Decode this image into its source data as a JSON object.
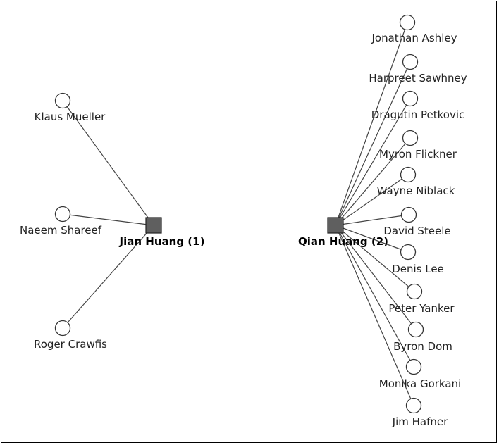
{
  "diagram": {
    "hubs": [
      {
        "id": "hub-1",
        "label": "Jian Huang (1)",
        "neighbors": [
          "Klaus Mueller",
          "Naeem Shareef",
          "Roger Crawfis"
        ]
      },
      {
        "id": "hub-2",
        "label": "Qian Huang (2)",
        "neighbors": [
          "Jonathan Ashley",
          "Harpreet Sawhney",
          "Dragutin Petkovic",
          "Myron Flickner",
          "Wayne Niblack",
          "David Steele",
          "Denis Lee",
          "Peter Yanker",
          "Byron Dom",
          "Monika Gorkani",
          "Jim Hafner"
        ]
      }
    ],
    "colors": {
      "hub_fill": "#5f5f5f",
      "node_fill": "#ffffff",
      "stroke": "#333333",
      "edge": "#444444"
    }
  }
}
